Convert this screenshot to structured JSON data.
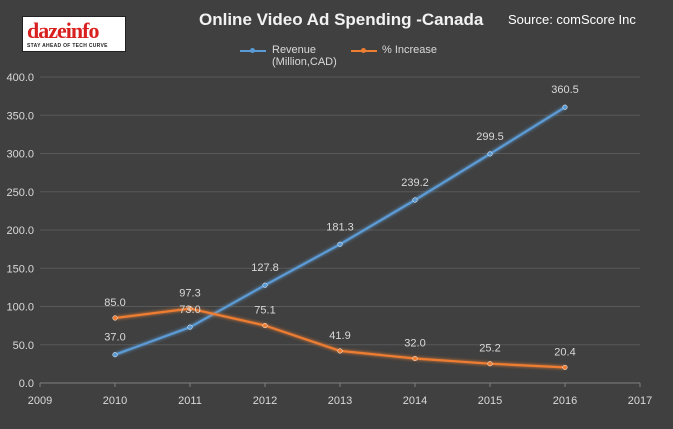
{
  "header": {
    "logo_text": "dazeinfo",
    "logo_tagline": "STAY AHEAD OF TECH CURVE",
    "title": "Online Video Ad Spending -Canada",
    "source": "Source: comScore Inc"
  },
  "colors": {
    "background": "#404040",
    "revenue": "#5b9bd5",
    "increase": "#ed7d31",
    "text": "#d9d9d9",
    "grid": "#595959"
  },
  "chart_data": {
    "type": "line",
    "title": "Online Video Ad Spending -Canada",
    "xlim": [
      2009,
      2017
    ],
    "ylim": [
      0,
      400
    ],
    "x_ticks": [
      2009,
      2010,
      2011,
      2012,
      2013,
      2014,
      2015,
      2016,
      2017
    ],
    "y_ticks": [
      "0.0",
      "50.0",
      "100.0",
      "150.0",
      "200.0",
      "250.0",
      "300.0",
      "350.0",
      "400.0"
    ],
    "grid": true,
    "legend": "top-center",
    "series": [
      {
        "name": "Revenue",
        "name_line2": "(Million,CAD)",
        "key": "revenue",
        "x": [
          2010,
          2011,
          2012,
          2013,
          2014,
          2015,
          2016
        ],
        "values": [
          37.0,
          73.0,
          127.8,
          181.3,
          239.2,
          299.5,
          360.5
        ],
        "labels": [
          "37.0",
          "73.0",
          "127.8",
          "181.3",
          "239.2",
          "299.5",
          "360.5"
        ]
      },
      {
        "name": "% Increase",
        "key": "increase",
        "x": [
          2010,
          2011,
          2012,
          2013,
          2014,
          2015,
          2016
        ],
        "values": [
          85.0,
          97.3,
          75.1,
          41.9,
          32.0,
          25.2,
          20.4
        ],
        "labels": [
          "85.0",
          "97.3",
          "75.1",
          "41.9",
          "32.0",
          "25.2",
          "20.4"
        ]
      }
    ]
  }
}
